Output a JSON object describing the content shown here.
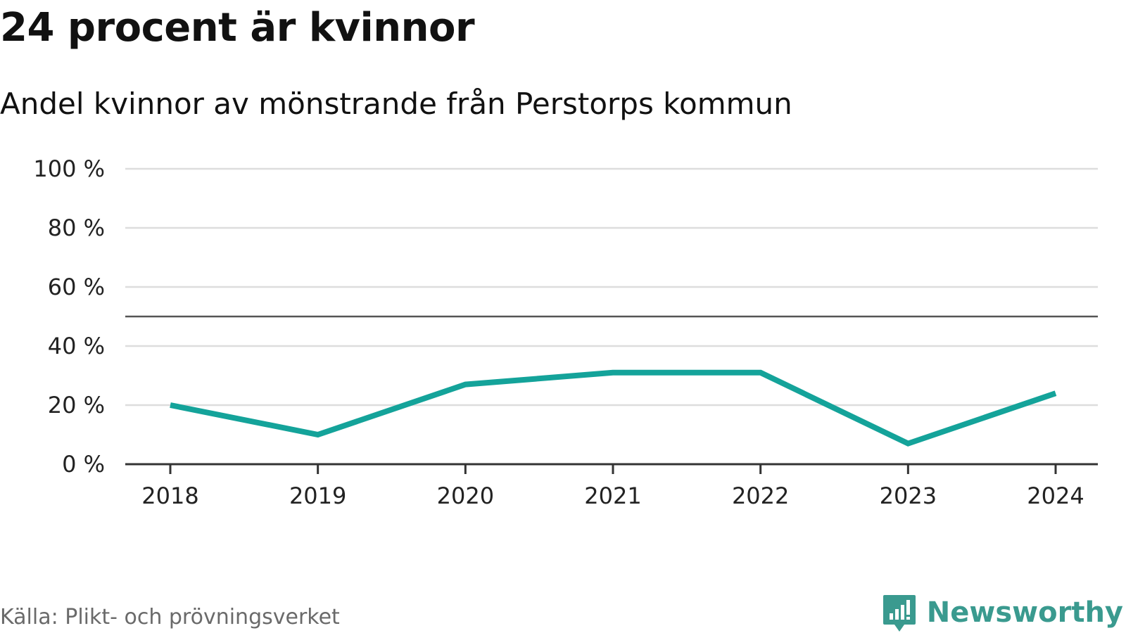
{
  "header": {
    "title": "24 procent är kvinnor",
    "subtitle": "Andel kvinnor av mönstrande från Perstorps kommun"
  },
  "footer": {
    "source": "Källa: Plikt- och prövningsverket",
    "brand": "Newsworthy"
  },
  "colors": {
    "line": "#14a39a",
    "grid": "#dddddd",
    "reference_line": "#555555",
    "axis": "#333333",
    "brand": "#3a9a8f"
  },
  "icons": {
    "brand_logo": "newsworthy-logo-icon"
  },
  "chart_data": {
    "type": "line",
    "title": "24 procent är kvinnor",
    "subtitle": "Andel kvinnor av mönstrande från Perstorps kommun",
    "xlabel": "",
    "ylabel": "",
    "categories": [
      "2018",
      "2019",
      "2020",
      "2021",
      "2022",
      "2023",
      "2024"
    ],
    "values": [
      20,
      10,
      27,
      31,
      31,
      7,
      24
    ],
    "ylim": [
      0,
      100
    ],
    "yticks": [
      0,
      20,
      40,
      60,
      80,
      100
    ],
    "ytick_labels": [
      "0 %",
      "20 %",
      "40 %",
      "60 %",
      "80 %",
      "100 %"
    ],
    "reference_line": 50,
    "grid": true,
    "legend": "none"
  }
}
